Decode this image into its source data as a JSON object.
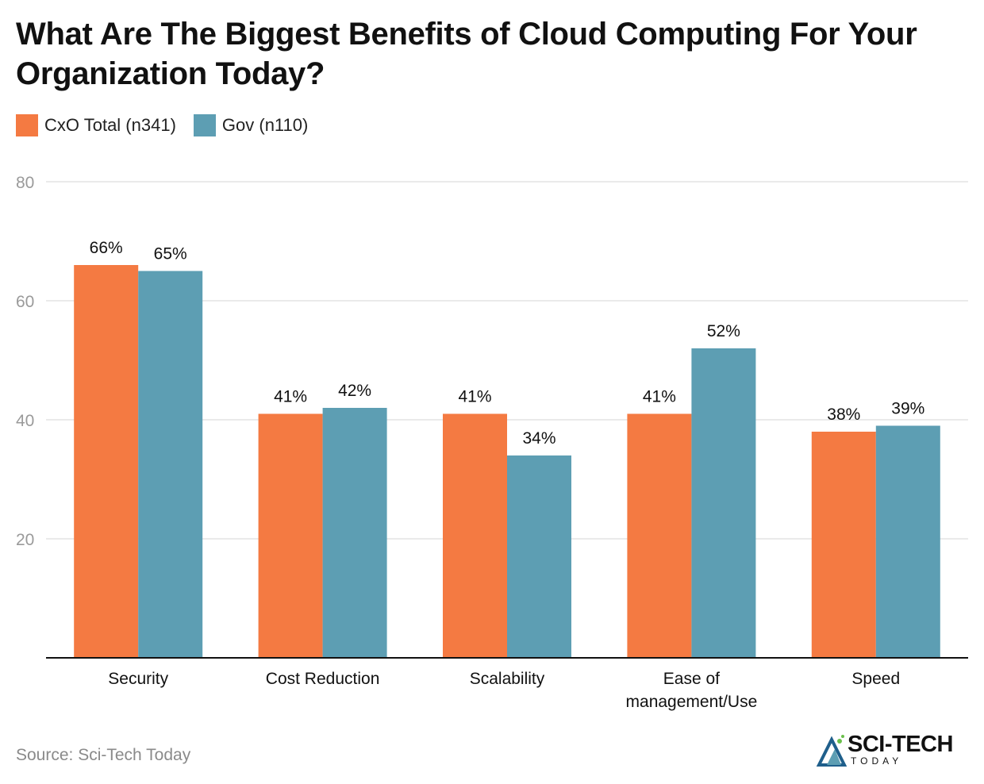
{
  "chart_data": {
    "type": "bar",
    "title": "What Are The Biggest Benefits of Cloud Computing For Your Organization Today?",
    "categories": [
      "Security",
      "Cost Reduction",
      "Scalability",
      "Ease of management/Use",
      "Speed"
    ],
    "category_lines": [
      [
        "Security"
      ],
      [
        "Cost Reduction"
      ],
      [
        "Scalability"
      ],
      [
        "Ease of",
        "management/Use"
      ],
      [
        "Speed"
      ]
    ],
    "series": [
      {
        "name": "CxO Total (n341)",
        "color": "#f47a42",
        "values": [
          66,
          41,
          41,
          41,
          38
        ]
      },
      {
        "name": "Gov (n110)",
        "color": "#5d9eb3",
        "values": [
          65,
          42,
          34,
          52,
          39
        ]
      }
    ],
    "value_suffix": "%",
    "ylim": [
      0,
      80
    ],
    "yticks": [
      20,
      40,
      60,
      80
    ],
    "xlabel": "",
    "ylabel": "",
    "grid": true,
    "legend_position": "top-left"
  },
  "source": "Source: Sci-Tech Today",
  "logo": {
    "name": "SCI-TECH",
    "sub": "TODAY"
  }
}
